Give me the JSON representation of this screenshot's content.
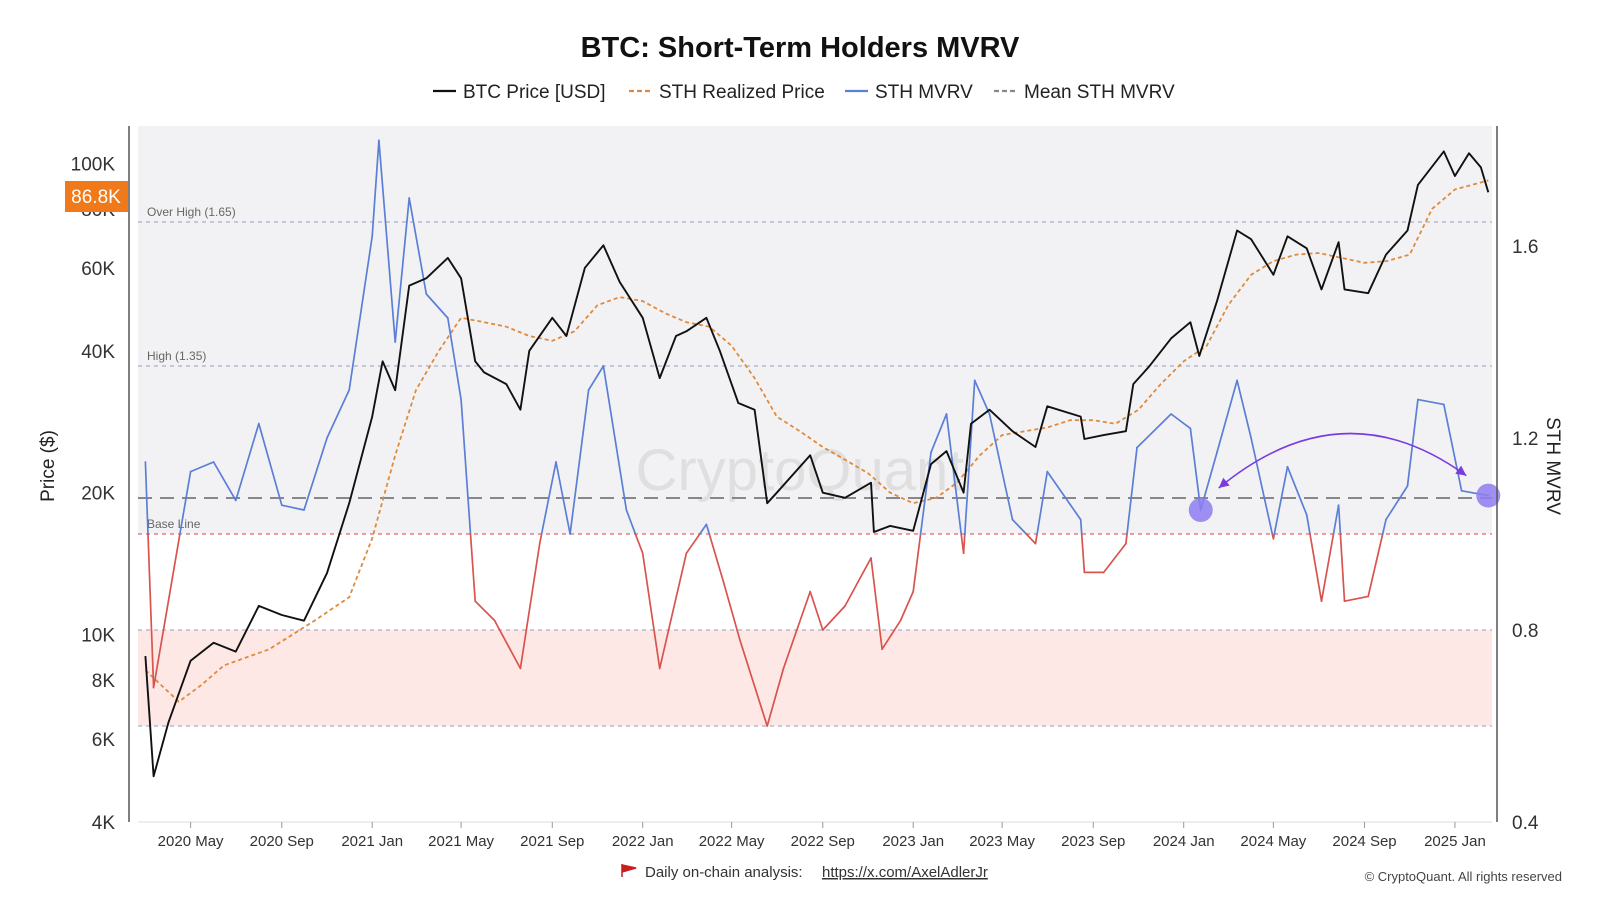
{
  "chart_data": {
    "type": "line",
    "title": "BTC: Short-Term Holders MVRV",
    "ylabel_left": "Price ($)",
    "ylabel_right": "STH MVRV",
    "price_badge": "86.8K",
    "watermark": "CryptoQuant",
    "footer": {
      "text": "Daily on-chain analysis: ",
      "link": "https://x.com/AxelAdlerJr",
      "copyright": "© CryptoQuant. All rights reserved"
    },
    "legend": [
      {
        "key": "price",
        "label": "BTC Price [USD]",
        "color": "#111111",
        "dash": "solid"
      },
      {
        "key": "realized",
        "label": "STH Realized Price",
        "color": "#e08a3c",
        "dash": "dashed"
      },
      {
        "key": "mvrv",
        "label": "STH MVRV",
        "color": "#5b7fd6",
        "dash": "solid"
      },
      {
        "key": "mean",
        "label": "Mean STH MVRV",
        "color": "#888888",
        "dash": "dashed"
      }
    ],
    "x_ticks": [
      "2020 May",
      "2020 Sep",
      "2021 Jan",
      "2021 May",
      "2021 Sep",
      "2022 Jan",
      "2022 May",
      "2022 Sep",
      "2023 Jan",
      "2023 May",
      "2023 Sep",
      "2024 Jan",
      "2024 May",
      "2024 Sep",
      "2025 Jan"
    ],
    "y_left_ticks": [
      "4K",
      "6K",
      "8K",
      "10K",
      "20K",
      "40K",
      "60K",
      "80K",
      "100K"
    ],
    "y_right_ticks": [
      "0.4",
      "0.8",
      "1.2",
      "1.6"
    ],
    "y_left_range": [
      4000,
      120000
    ],
    "y_right_range": [
      0.4,
      1.85
    ],
    "y_left_scale": "log",
    "reference_lines": [
      {
        "label": "Over High (1.65)",
        "value": 1.65
      },
      {
        "label": "High (1.35)",
        "value": 1.35
      },
      {
        "label": "Base Line",
        "value": 1.0
      },
      {
        "label": "",
        "value": 0.8
      },
      {
        "label": "",
        "value": 0.6
      }
    ],
    "mean_mvrv": 1.075,
    "series": [
      {
        "name": "BTC Price [USD]",
        "points": [
          [
            "2020-03-01",
            9000
          ],
          [
            "2020-03-12",
            5000
          ],
          [
            "2020-04-01",
            6500
          ],
          [
            "2020-05-01",
            8800
          ],
          [
            "2020-06-01",
            9600
          ],
          [
            "2020-07-01",
            9200
          ],
          [
            "2020-08-01",
            11500
          ],
          [
            "2020-09-01",
            11000
          ],
          [
            "2020-10-01",
            10700
          ],
          [
            "2020-11-01",
            13500
          ],
          [
            "2020-12-01",
            19000
          ],
          [
            "2021-01-01",
            29000
          ],
          [
            "2021-01-15",
            38000
          ],
          [
            "2021-02-01",
            33000
          ],
          [
            "2021-02-20",
            55000
          ],
          [
            "2021-03-15",
            57000
          ],
          [
            "2021-04-13",
            63000
          ],
          [
            "2021-05-01",
            57000
          ],
          [
            "2021-05-20",
            38000
          ],
          [
            "2021-06-01",
            36000
          ],
          [
            "2021-07-01",
            34000
          ],
          [
            "2021-07-20",
            30000
          ],
          [
            "2021-08-01",
            40000
          ],
          [
            "2021-09-01",
            47000
          ],
          [
            "2021-09-20",
            43000
          ],
          [
            "2021-10-15",
            60000
          ],
          [
            "2021-11-09",
            67000
          ],
          [
            "2021-12-01",
            56000
          ],
          [
            "2022-01-01",
            47000
          ],
          [
            "2022-01-24",
            35000
          ],
          [
            "2022-02-15",
            43000
          ],
          [
            "2022-03-01",
            44000
          ],
          [
            "2022-03-28",
            47000
          ],
          [
            "2022-04-15",
            40000
          ],
          [
            "2022-05-10",
            31000
          ],
          [
            "2022-06-01",
            30000
          ],
          [
            "2022-06-18",
            19000
          ],
          [
            "2022-07-01",
            20000
          ],
          [
            "2022-08-15",
            24000
          ],
          [
            "2022-09-01",
            20000
          ],
          [
            "2022-10-01",
            19500
          ],
          [
            "2022-11-05",
            21000
          ],
          [
            "2022-11-09",
            16500
          ],
          [
            "2022-12-01",
            17000
          ],
          [
            "2023-01-01",
            16600
          ],
          [
            "2023-01-25",
            23000
          ],
          [
            "2023-02-15",
            24500
          ],
          [
            "2023-03-10",
            20000
          ],
          [
            "2023-03-20",
            28000
          ],
          [
            "2023-04-14",
            30000
          ],
          [
            "2023-05-15",
            27000
          ],
          [
            "2023-06-15",
            25000
          ],
          [
            "2023-07-01",
            30500
          ],
          [
            "2023-08-15",
            29000
          ],
          [
            "2023-08-20",
            26000
          ],
          [
            "2023-09-15",
            26500
          ],
          [
            "2023-10-15",
            27000
          ],
          [
            "2023-10-25",
            34000
          ],
          [
            "2023-11-15",
            37000
          ],
          [
            "2023-12-15",
            42500
          ],
          [
            "2024-01-10",
            46000
          ],
          [
            "2024-01-22",
            39000
          ],
          [
            "2024-02-15",
            51000
          ],
          [
            "2024-03-13",
            72000
          ],
          [
            "2024-04-01",
            69000
          ],
          [
            "2024-05-01",
            58000
          ],
          [
            "2024-05-20",
            70000
          ],
          [
            "2024-06-15",
            66000
          ],
          [
            "2024-07-05",
            54000
          ],
          [
            "2024-07-28",
            68000
          ],
          [
            "2024-08-05",
            54000
          ],
          [
            "2024-09-06",
            53000
          ],
          [
            "2024-09-30",
            64000
          ],
          [
            "2024-10-29",
            72000
          ],
          [
            "2024-11-12",
            90000
          ],
          [
            "2024-12-17",
            106000
          ],
          [
            "2025-01-01",
            94000
          ],
          [
            "2025-01-20",
            105000
          ],
          [
            "2025-02-05",
            98000
          ],
          [
            "2025-02-15",
            86800
          ]
        ]
      },
      {
        "name": "STH Realized Price",
        "points": [
          [
            "2020-03-01",
            8400
          ],
          [
            "2020-04-15",
            7200
          ],
          [
            "2020-05-15",
            7800
          ],
          [
            "2020-06-15",
            8600
          ],
          [
            "2020-08-15",
            9300
          ],
          [
            "2020-10-15",
            10700
          ],
          [
            "2020-12-01",
            12000
          ],
          [
            "2021-01-01",
            16000
          ],
          [
            "2021-02-01",
            24000
          ],
          [
            "2021-03-01",
            33000
          ],
          [
            "2021-04-01",
            40000
          ],
          [
            "2021-05-01",
            47000
          ],
          [
            "2021-06-01",
            46000
          ],
          [
            "2021-07-01",
            45000
          ],
          [
            "2021-08-01",
            43000
          ],
          [
            "2021-09-01",
            42000
          ],
          [
            "2021-10-01",
            44000
          ],
          [
            "2021-11-01",
            50000
          ],
          [
            "2021-12-01",
            52000
          ],
          [
            "2022-01-01",
            51000
          ],
          [
            "2022-02-01",
            48000
          ],
          [
            "2022-03-01",
            46000
          ],
          [
            "2022-04-01",
            45000
          ],
          [
            "2022-05-01",
            41000
          ],
          [
            "2022-06-01",
            35000
          ],
          [
            "2022-07-01",
            29000
          ],
          [
            "2022-08-01",
            27000
          ],
          [
            "2022-09-01",
            25000
          ],
          [
            "2022-10-01",
            23500
          ],
          [
            "2022-11-01",
            22000
          ],
          [
            "2022-12-01",
            20000
          ],
          [
            "2023-01-01",
            19000
          ],
          [
            "2023-02-01",
            19500
          ],
          [
            "2023-03-01",
            21000
          ],
          [
            "2023-04-01",
            24000
          ],
          [
            "2023-05-01",
            26500
          ],
          [
            "2023-06-01",
            27000
          ],
          [
            "2023-07-01",
            27500
          ],
          [
            "2023-08-01",
            28500
          ],
          [
            "2023-09-01",
            28500
          ],
          [
            "2023-10-01",
            28000
          ],
          [
            "2023-11-01",
            30000
          ],
          [
            "2023-12-01",
            34000
          ],
          [
            "2024-01-01",
            38000
          ],
          [
            "2024-02-01",
            41000
          ],
          [
            "2024-03-01",
            50000
          ],
          [
            "2024-04-01",
            58000
          ],
          [
            "2024-05-01",
            62000
          ],
          [
            "2024-06-01",
            64000
          ],
          [
            "2024-07-01",
            64500
          ],
          [
            "2024-08-01",
            63000
          ],
          [
            "2024-09-01",
            61500
          ],
          [
            "2024-10-01",
            62000
          ],
          [
            "2024-11-01",
            64000
          ],
          [
            "2024-12-01",
            80000
          ],
          [
            "2025-01-01",
            88000
          ],
          [
            "2025-02-15",
            92000
          ]
        ]
      },
      {
        "name": "STH MVRV",
        "points": [
          [
            "2020-03-01",
            1.15
          ],
          [
            "2020-03-12",
            0.68
          ],
          [
            "2020-04-01",
            0.86
          ],
          [
            "2020-05-01",
            1.13
          ],
          [
            "2020-06-01",
            1.15
          ],
          [
            "2020-07-01",
            1.07
          ],
          [
            "2020-08-01",
            1.23
          ],
          [
            "2020-09-01",
            1.06
          ],
          [
            "2020-10-01",
            1.05
          ],
          [
            "2020-11-01",
            1.2
          ],
          [
            "2020-12-01",
            1.3
          ],
          [
            "2021-01-01",
            1.62
          ],
          [
            "2021-01-10",
            1.82
          ],
          [
            "2021-02-01",
            1.4
          ],
          [
            "2021-02-20",
            1.7
          ],
          [
            "2021-03-15",
            1.5
          ],
          [
            "2021-04-13",
            1.45
          ],
          [
            "2021-05-01",
            1.28
          ],
          [
            "2021-05-20",
            0.86
          ],
          [
            "2021-06-15",
            0.82
          ],
          [
            "2021-07-20",
            0.72
          ],
          [
            "2021-08-15",
            0.98
          ],
          [
            "2021-09-06",
            1.15
          ],
          [
            "2021-09-25",
            1.0
          ],
          [
            "2021-10-20",
            1.3
          ],
          [
            "2021-11-09",
            1.35
          ],
          [
            "2021-12-10",
            1.05
          ],
          [
            "2022-01-01",
            0.96
          ],
          [
            "2022-01-24",
            0.72
          ],
          [
            "2022-03-01",
            0.96
          ],
          [
            "2022-03-28",
            1.02
          ],
          [
            "2022-04-20",
            0.9
          ],
          [
            "2022-05-12",
            0.78
          ],
          [
            "2022-06-18",
            0.6
          ],
          [
            "2022-07-10",
            0.72
          ],
          [
            "2022-08-15",
            0.88
          ],
          [
            "2022-09-01",
            0.8
          ],
          [
            "2022-10-01",
            0.85
          ],
          [
            "2022-11-05",
            0.95
          ],
          [
            "2022-11-20",
            0.76
          ],
          [
            "2022-12-15",
            0.82
          ],
          [
            "2023-01-01",
            0.88
          ],
          [
            "2023-01-25",
            1.17
          ],
          [
            "2023-02-15",
            1.25
          ],
          [
            "2023-03-10",
            0.96
          ],
          [
            "2023-03-25",
            1.32
          ],
          [
            "2023-04-14",
            1.25
          ],
          [
            "2023-05-15",
            1.03
          ],
          [
            "2023-06-15",
            0.98
          ],
          [
            "2023-07-01",
            1.13
          ],
          [
            "2023-08-15",
            1.03
          ],
          [
            "2023-08-20",
            0.92
          ],
          [
            "2023-09-15",
            0.92
          ],
          [
            "2023-10-15",
            0.98
          ],
          [
            "2023-10-30",
            1.18
          ],
          [
            "2023-12-15",
            1.25
          ],
          [
            "2024-01-10",
            1.22
          ],
          [
            "2024-01-24",
            1.05
          ],
          [
            "2024-02-15",
            1.17
          ],
          [
            "2024-03-13",
            1.32
          ],
          [
            "2024-04-01",
            1.2
          ],
          [
            "2024-05-01",
            0.99
          ],
          [
            "2024-05-20",
            1.14
          ],
          [
            "2024-06-15",
            1.04
          ],
          [
            "2024-07-05",
            0.86
          ],
          [
            "2024-07-28",
            1.06
          ],
          [
            "2024-08-05",
            0.86
          ],
          [
            "2024-09-06",
            0.87
          ],
          [
            "2024-09-30",
            1.03
          ],
          [
            "2024-10-29",
            1.1
          ],
          [
            "2024-11-12",
            1.28
          ],
          [
            "2024-12-17",
            1.27
          ],
          [
            "2025-01-10",
            1.09
          ],
          [
            "2025-02-15",
            1.08
          ]
        ]
      }
    ]
  }
}
